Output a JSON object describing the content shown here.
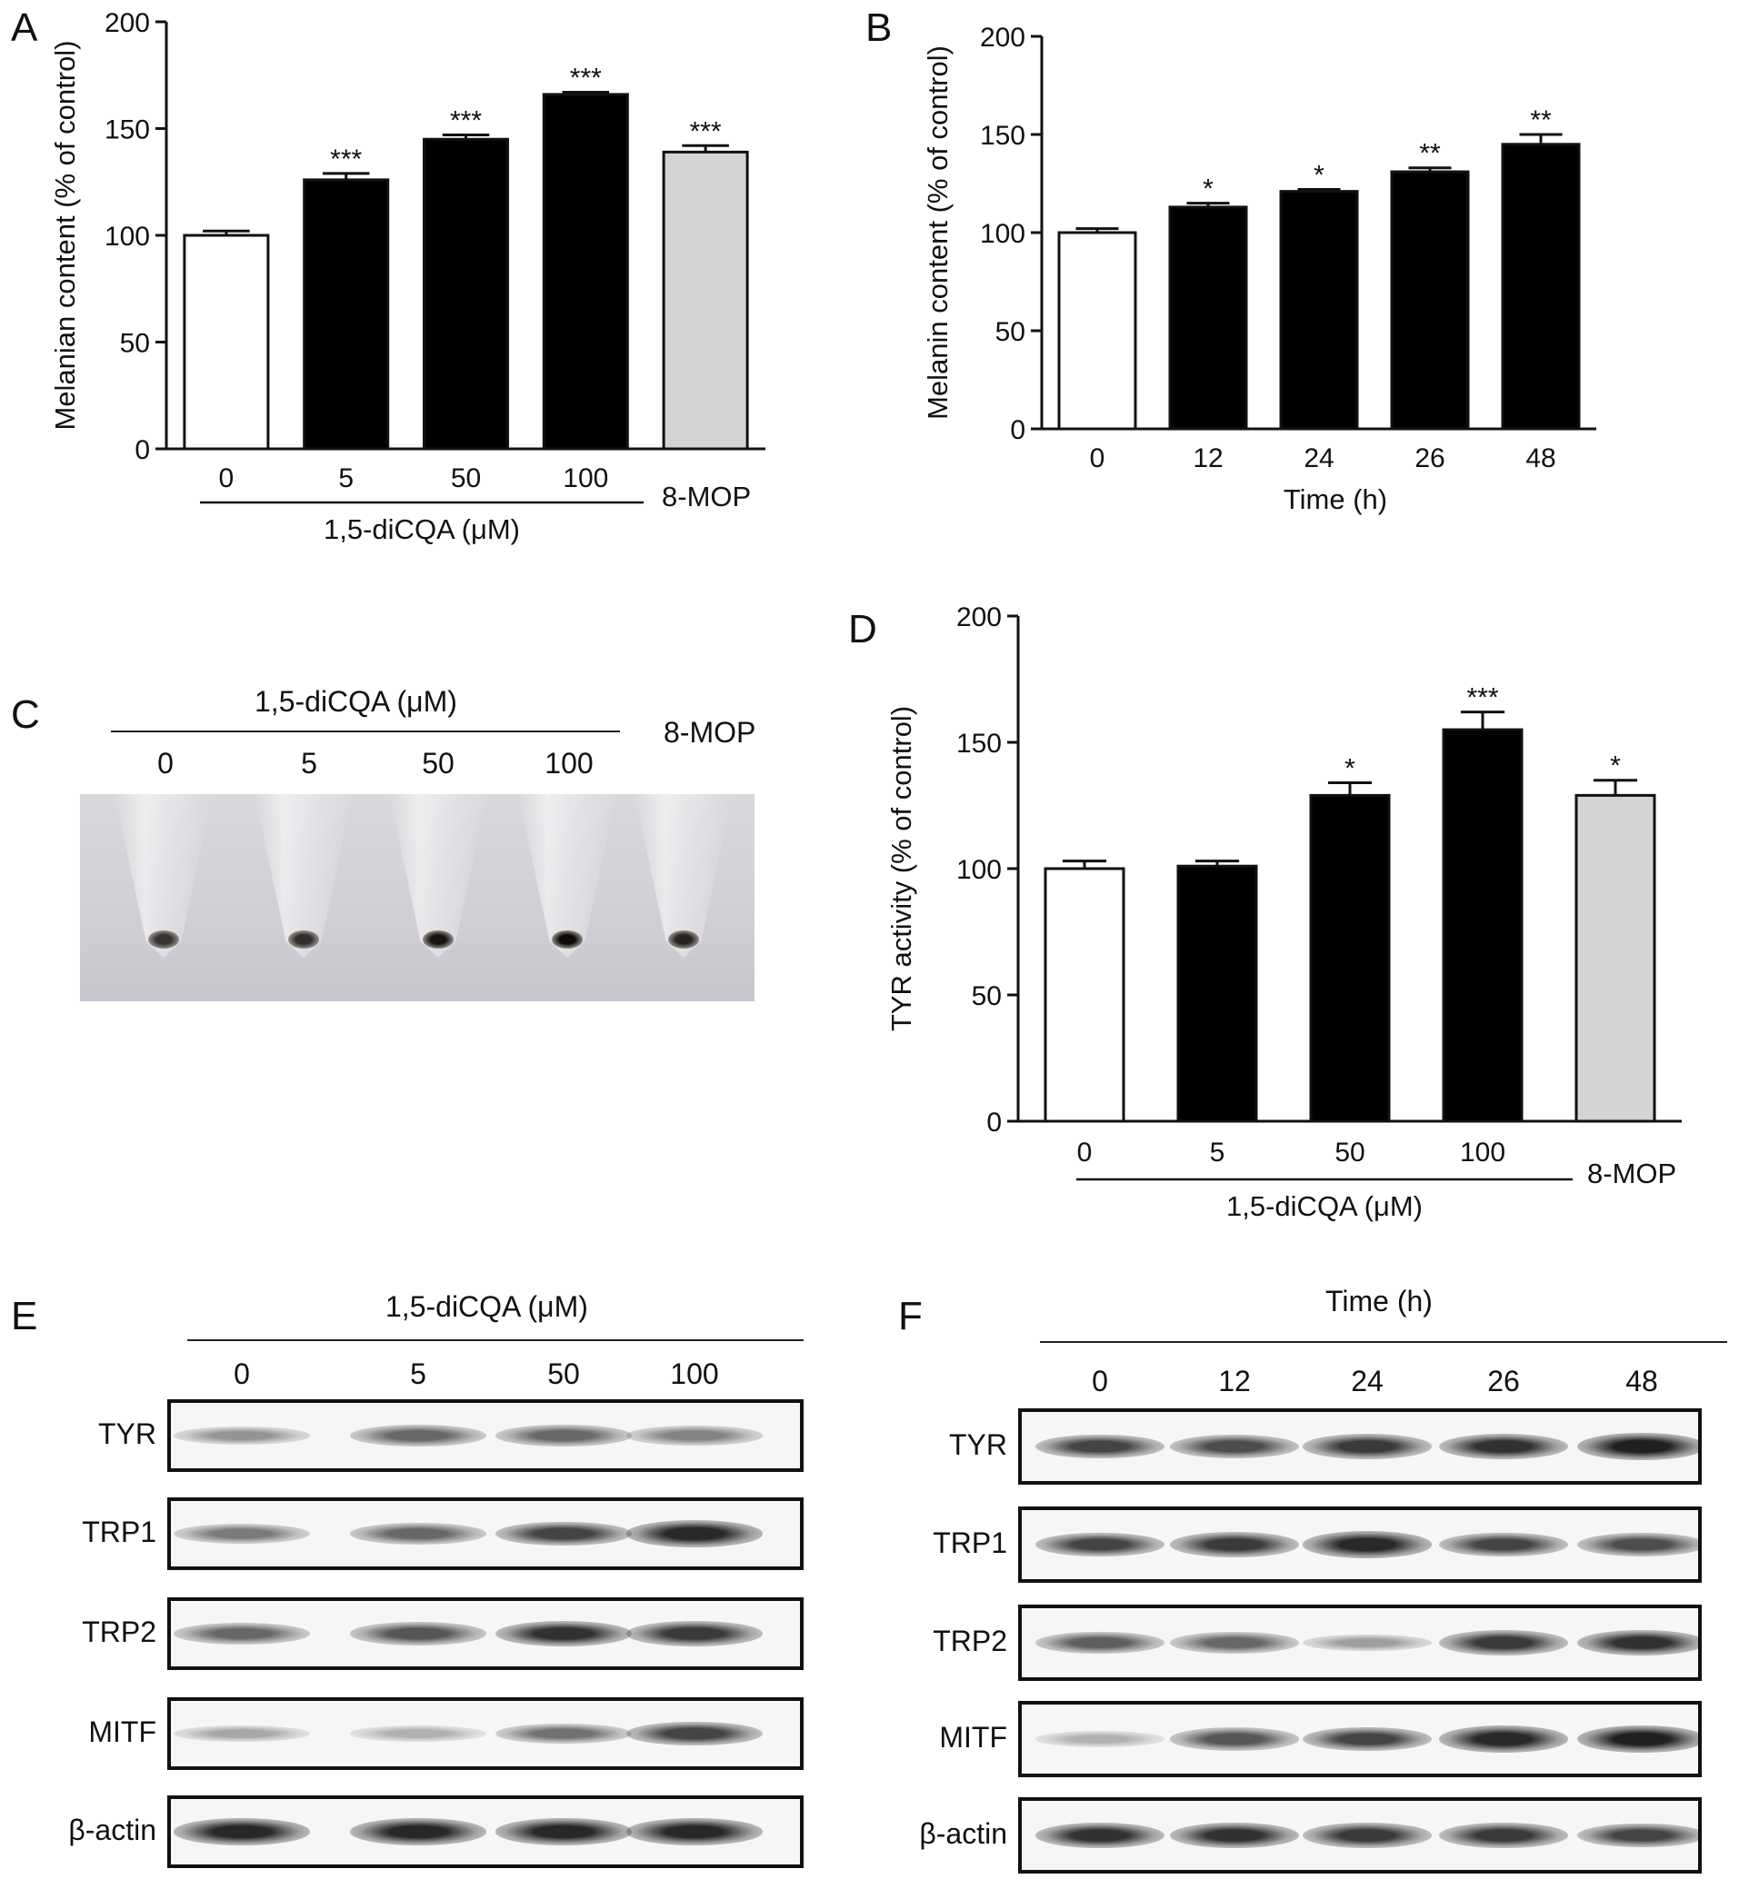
{
  "panels": {
    "A": "A",
    "B": "B",
    "C": "C",
    "D": "D",
    "E": "E",
    "F": "F"
  },
  "chart_data": [
    {
      "id": "A",
      "type": "bar",
      "categories": [
        "0",
        "5",
        "50",
        "100",
        "8-MOP"
      ],
      "values": [
        100,
        126,
        145,
        166,
        139
      ],
      "errors": [
        2,
        3,
        2,
        1,
        3
      ],
      "significance": [
        "",
        "***",
        "***",
        "***",
        "***"
      ],
      "bar_colors": [
        "#ffffff",
        "#000000",
        "#000000",
        "#000000",
        "#d4d4d4"
      ],
      "ylabel": "Melanian content (% of control)",
      "xlabel": "1,5-diCQA (μM)",
      "ylim": [
        0,
        200
      ],
      "yticks": [
        0,
        50,
        100,
        150,
        200
      ],
      "bracket_label": "1,5-diCQA (μM)",
      "extra_label": "8-MOP"
    },
    {
      "id": "B",
      "type": "bar",
      "categories": [
        "0",
        "12",
        "24",
        "26",
        "48"
      ],
      "values": [
        100,
        113,
        121,
        131,
        145
      ],
      "errors": [
        2,
        2,
        1,
        2,
        5
      ],
      "significance": [
        "",
        "*",
        "*",
        "**",
        "**"
      ],
      "bar_colors": [
        "#ffffff",
        "#000000",
        "#000000",
        "#000000",
        "#000000"
      ],
      "ylabel": "Melanin content (% of control)",
      "xlabel": "Time (h)",
      "ylim": [
        0,
        200
      ],
      "yticks": [
        0,
        50,
        100,
        150,
        200
      ]
    },
    {
      "id": "D",
      "type": "bar",
      "categories": [
        "0",
        "5",
        "50",
        "100",
        "8-MOP"
      ],
      "values": [
        100,
        101,
        129,
        155,
        129
      ],
      "errors": [
        3,
        2,
        5,
        7,
        6
      ],
      "significance": [
        "",
        "",
        "*",
        "***",
        "*"
      ],
      "bar_colors": [
        "#ffffff",
        "#000000",
        "#000000",
        "#000000",
        "#d4d4d4"
      ],
      "ylabel": "TYR activity (% of control)",
      "xlabel": "1,5-diCQA (μM)",
      "ylim": [
        0,
        200
      ],
      "yticks": [
        0,
        50,
        100,
        150,
        200
      ],
      "bracket_label": "1,5-diCQA (μM)",
      "extra_label": "8-MOP"
    }
  ],
  "panel_c": {
    "title": "1,5-diCQA (μM)",
    "lanes": [
      "0",
      "5",
      "50",
      "100"
    ],
    "extra_label": "8-MOP",
    "pellet_darkness": [
      0.55,
      0.6,
      0.85,
      0.95,
      0.7
    ]
  },
  "blot_e": {
    "title": "1,5-diCQA (μM)",
    "lanes": [
      "0",
      "5",
      "50",
      "100"
    ],
    "rows": [
      {
        "name": "TYR",
        "intensity": [
          0.35,
          0.6,
          0.6,
          0.45
        ]
      },
      {
        "name": "TRP1",
        "intensity": [
          0.5,
          0.6,
          0.8,
          0.95
        ]
      },
      {
        "name": "TRP2",
        "intensity": [
          0.6,
          0.7,
          0.9,
          0.85
        ]
      },
      {
        "name": "MITF",
        "intensity": [
          0.25,
          0.2,
          0.55,
          0.8
        ]
      },
      {
        "name": "β-actin",
        "intensity": [
          0.95,
          0.95,
          0.95,
          0.95
        ]
      }
    ]
  },
  "blot_f": {
    "title": "Time (h)",
    "lanes": [
      "0",
      "12",
      "24",
      "26",
      "48"
    ],
    "rows": [
      {
        "name": "TYR",
        "intensity": [
          0.8,
          0.75,
          0.85,
          0.9,
          1.0
        ]
      },
      {
        "name": "TRP1",
        "intensity": [
          0.8,
          0.85,
          0.95,
          0.8,
          0.75
        ]
      },
      {
        "name": "TRP2",
        "intensity": [
          0.65,
          0.6,
          0.3,
          0.85,
          0.9
        ]
      },
      {
        "name": "MITF",
        "intensity": [
          0.2,
          0.7,
          0.8,
          0.95,
          1.0
        ]
      },
      {
        "name": "β-actin",
        "intensity": [
          0.9,
          0.9,
          0.85,
          0.85,
          0.8
        ]
      }
    ]
  }
}
